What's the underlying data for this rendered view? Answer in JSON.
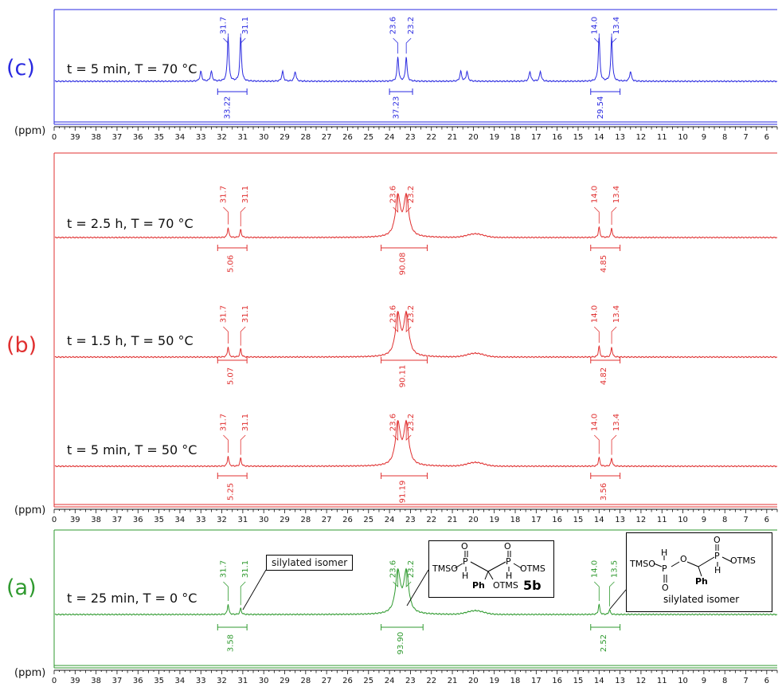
{
  "colors": {
    "c": "#2a2ae0",
    "b": "#e03030",
    "a": "#2f9a2f",
    "axis": "#111111"
  },
  "axis": {
    "unit_label": "(ppm)",
    "ticks": [
      "0",
      "39",
      "38",
      "37",
      "36",
      "35",
      "34",
      "33",
      "32",
      "31",
      "30",
      "29",
      "28",
      "27",
      "26",
      "25",
      "24",
      "23",
      "22",
      "21",
      "20",
      "19",
      "18",
      "17",
      "16",
      "15",
      "14",
      "13",
      "12",
      "11",
      "10",
      "9",
      "8",
      "7",
      "6"
    ]
  },
  "panels": {
    "c": {
      "label": "(c)"
    },
    "b": {
      "label": "(b)"
    },
    "a": {
      "label": "(a)"
    }
  },
  "chart_data": [
    {
      "type": "line",
      "panel": "(c)",
      "title": "t = 5 min, T = 70 °C",
      "xlabel": "(ppm)",
      "xlim": [
        40,
        5.5
      ],
      "peak_labels": [
        "31.7",
        "31.1",
        "23.6",
        "23.2",
        "14.0",
        "13.4"
      ],
      "peaks_ppm": [
        31.7,
        31.1,
        23.6,
        23.2,
        14.0,
        13.4
      ],
      "peak_heights_rel": [
        1.0,
        1.0,
        0.55,
        0.55,
        1.0,
        1.0
      ],
      "minor_peaks_ppm": [
        33.0,
        32.5,
        29.1,
        28.5,
        20.6,
        20.3,
        17.3,
        16.8,
        12.5
      ],
      "integrals": [
        {
          "label": "33.22",
          "range_ppm": [
            32.2,
            30.8
          ]
        },
        {
          "label": "37.23",
          "range_ppm": [
            24.0,
            22.9
          ]
        },
        {
          "label": "29.54",
          "range_ppm": [
            14.4,
            13.0
          ]
        }
      ]
    },
    {
      "type": "line",
      "panel": "(b)",
      "title": "t = 2.5 h, T = 70 °C",
      "xlabel": "(ppm)",
      "xlim": [
        40,
        5.5
      ],
      "peak_labels": [
        "31.7",
        "31.1",
        "23.6",
        "23.2",
        "14.0",
        "13.4"
      ],
      "peaks_ppm": [
        31.7,
        31.1,
        23.6,
        23.2,
        14.0,
        13.4
      ],
      "peak_heights_rel": [
        0.25,
        0.2,
        1.0,
        1.0,
        0.27,
        0.24
      ],
      "integrals": [
        {
          "label": "5.06",
          "range_ppm": [
            32.2,
            30.8
          ]
        },
        {
          "label": "90.08",
          "range_ppm": [
            24.4,
            22.2
          ]
        },
        {
          "label": "4.85",
          "range_ppm": [
            14.4,
            13.0
          ]
        }
      ]
    },
    {
      "type": "line",
      "panel": "(b)",
      "title": "t = 1.5 h, T = 50 °C",
      "xlabel": "(ppm)",
      "xlim": [
        40,
        5.5
      ],
      "peak_labels": [
        "31.7",
        "31.1",
        "23.6",
        "23.2",
        "14.0",
        "13.4"
      ],
      "peaks_ppm": [
        31.7,
        31.1,
        23.6,
        23.2,
        14.0,
        13.4
      ],
      "peak_heights_rel": [
        0.25,
        0.2,
        1.0,
        1.0,
        0.27,
        0.24
      ],
      "integrals": [
        {
          "label": "5.07",
          "range_ppm": [
            32.2,
            30.8
          ]
        },
        {
          "label": "90.11",
          "range_ppm": [
            24.4,
            22.2
          ]
        },
        {
          "label": "4.82",
          "range_ppm": [
            14.4,
            13.0
          ]
        }
      ]
    },
    {
      "type": "line",
      "panel": "(b)",
      "title": "t = 5 min, T = 50 °C",
      "xlabel": "(ppm)",
      "xlim": [
        40,
        5.5
      ],
      "peak_labels": [
        "31.7",
        "31.1",
        "23.6",
        "23.2",
        "14.0",
        "13.4"
      ],
      "peaks_ppm": [
        31.7,
        31.1,
        23.6,
        23.2,
        14.0,
        13.4
      ],
      "peak_heights_rel": [
        0.25,
        0.2,
        1.0,
        1.0,
        0.22,
        0.2
      ],
      "integrals": [
        {
          "label": "5.25",
          "range_ppm": [
            32.2,
            30.8
          ]
        },
        {
          "label": "91.19",
          "range_ppm": [
            24.4,
            22.2
          ]
        },
        {
          "label": "3.56",
          "range_ppm": [
            14.4,
            13.0
          ]
        }
      ]
    },
    {
      "type": "line",
      "panel": "(a)",
      "title": "t = 25 min, T = 0 °C",
      "xlabel": "(ppm)",
      "xlim": [
        40,
        5.5
      ],
      "peak_labels": [
        "31.7",
        "31.1",
        "23.6",
        "23.2",
        "14.0",
        "13.5"
      ],
      "peaks_ppm": [
        31.7,
        31.1,
        23.6,
        23.2,
        14.0,
        13.5
      ],
      "peak_heights_rel": [
        0.25,
        0.15,
        1.0,
        1.0,
        0.25,
        0.12
      ],
      "integrals": [
        {
          "label": "3.58",
          "range_ppm": [
            32.2,
            30.8
          ]
        },
        {
          "label": "93.90",
          "range_ppm": [
            24.4,
            22.4
          ]
        },
        {
          "label": "2.52",
          "range_ppm": [
            14.4,
            13.0
          ]
        }
      ],
      "annotations": {
        "silylated_1": "silylated isomer",
        "struct_5b": {
          "P1": "P",
          "P2": "P",
          "O1": "O",
          "O2": "O",
          "TMSO": "TMSO",
          "OTMS": "OTMS",
          "H1": "H",
          "H2": "H",
          "Ph": "Ph",
          "OTMS2": "OTMS",
          "name": "5b"
        },
        "struct_silylated": {
          "TMSO": "TMSO",
          "P1": "P",
          "P2": "P",
          "O_bridge": "O",
          "O_top": "O",
          "O_bot": "O",
          "OTMS": "OTMS",
          "H1": "H",
          "H2": "H",
          "Ph": "Ph",
          "caption": "silylated isomer"
        }
      }
    }
  ]
}
